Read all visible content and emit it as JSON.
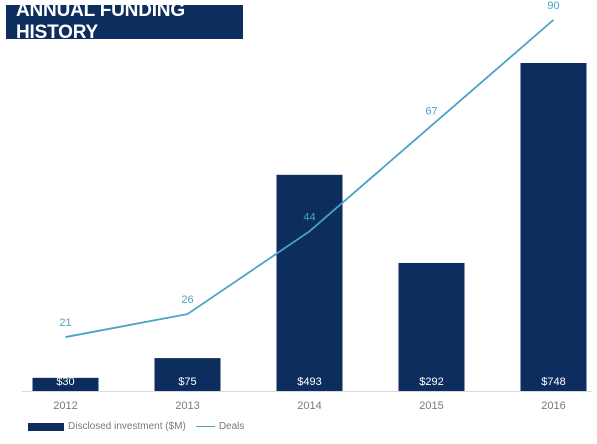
{
  "title": "ANNUAL FUNDING HISTORY",
  "colors": {
    "bar": "#0d2d5e",
    "line": "#4aa3c4",
    "title_bg": "#0d2d5e",
    "axis_text": "#7a7a7a"
  },
  "chart_data": {
    "type": "bar",
    "categories": [
      "2012",
      "2013",
      "2014",
      "2015",
      "2016"
    ],
    "series": [
      {
        "name": "Disclosed investment ($M)",
        "type": "bar",
        "values": [
          30,
          75,
          493,
          292,
          748
        ],
        "labels": [
          "$30",
          "$75",
          "$493",
          "$292",
          "$748"
        ]
      },
      {
        "name": "Deals",
        "type": "line",
        "values": [
          21,
          26,
          44,
          67,
          90
        ],
        "labels": [
          "21",
          "26",
          "44",
          "67",
          "90"
        ]
      }
    ],
    "legend_position": "bottom-left",
    "grid": false
  }
}
